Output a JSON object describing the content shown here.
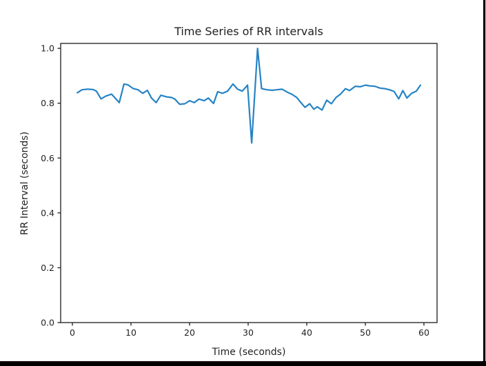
{
  "page": {
    "background": "#ffffff",
    "bottom_bar_color": "#000000",
    "right_border_color": "#000000",
    "spine_color": "#2b2b2b",
    "text_color": "#1f1f1f"
  },
  "chart_data": {
    "type": "line",
    "title": "Time Series of RR intervals",
    "xlabel": "Time (seconds)",
    "ylabel": "RR Interval (seconds)",
    "xlim": [
      -2,
      62.24
    ],
    "ylim": [
      0,
      1.018
    ],
    "x_ticks": [
      0,
      10,
      20,
      30,
      40,
      50,
      60
    ],
    "x_tick_labels": [
      "0",
      "10",
      "20",
      "30",
      "40",
      "50",
      "60"
    ],
    "y_ticks": [
      0.0,
      0.2,
      0.4,
      0.6,
      0.8,
      1.0
    ],
    "y_tick_labels": [
      "0.0",
      "0.2",
      "0.4",
      "0.6",
      "0.8",
      "1.0"
    ],
    "grid": false,
    "legend": null,
    "line_color": "#2583c5",
    "series": [
      {
        "name": "RR intervals",
        "x": [
          0.85,
          1.65,
          2.6,
          3.5,
          4.1,
          4.9,
          5.7,
          6.7,
          7.3,
          8.0,
          8.8,
          9.5,
          10.4,
          11.2,
          12.0,
          12.8,
          13.5,
          14.3,
          15.1,
          16.1,
          16.9,
          17.5,
          18.3,
          19.2,
          20.0,
          20.8,
          21.6,
          22.5,
          23.2,
          24.1,
          24.8,
          25.6,
          26.5,
          27.4,
          28.2,
          29.0,
          29.9,
          30.6,
          31.6,
          32.3,
          33.2,
          34.1,
          34.9,
          35.8,
          36.7,
          37.5,
          38.3,
          39.0,
          39.7,
          40.5,
          41.2,
          41.8,
          42.6,
          43.4,
          44.2,
          45.0,
          45.8,
          46.6,
          47.3,
          48.3,
          49.1,
          50.0,
          50.8,
          51.6,
          52.5,
          53.3,
          54.1,
          54.9,
          55.7,
          56.4,
          57.1,
          57.9,
          58.7,
          59.4
        ],
        "y": [
          0.838,
          0.849,
          0.851,
          0.85,
          0.844,
          0.816,
          0.826,
          0.833,
          0.819,
          0.802,
          0.87,
          0.867,
          0.853,
          0.849,
          0.836,
          0.847,
          0.819,
          0.802,
          0.829,
          0.823,
          0.821,
          0.815,
          0.796,
          0.798,
          0.809,
          0.802,
          0.815,
          0.809,
          0.819,
          0.799,
          0.842,
          0.836,
          0.844,
          0.87,
          0.851,
          0.844,
          0.866,
          0.655,
          1.0,
          0.853,
          0.849,
          0.847,
          0.849,
          0.851,
          0.84,
          0.832,
          0.821,
          0.802,
          0.785,
          0.798,
          0.778,
          0.787,
          0.775,
          0.811,
          0.798,
          0.821,
          0.834,
          0.853,
          0.846,
          0.862,
          0.86,
          0.866,
          0.863,
          0.862,
          0.855,
          0.853,
          0.849,
          0.843,
          0.816,
          0.846,
          0.819,
          0.836,
          0.844,
          0.866
        ]
      }
    ]
  }
}
